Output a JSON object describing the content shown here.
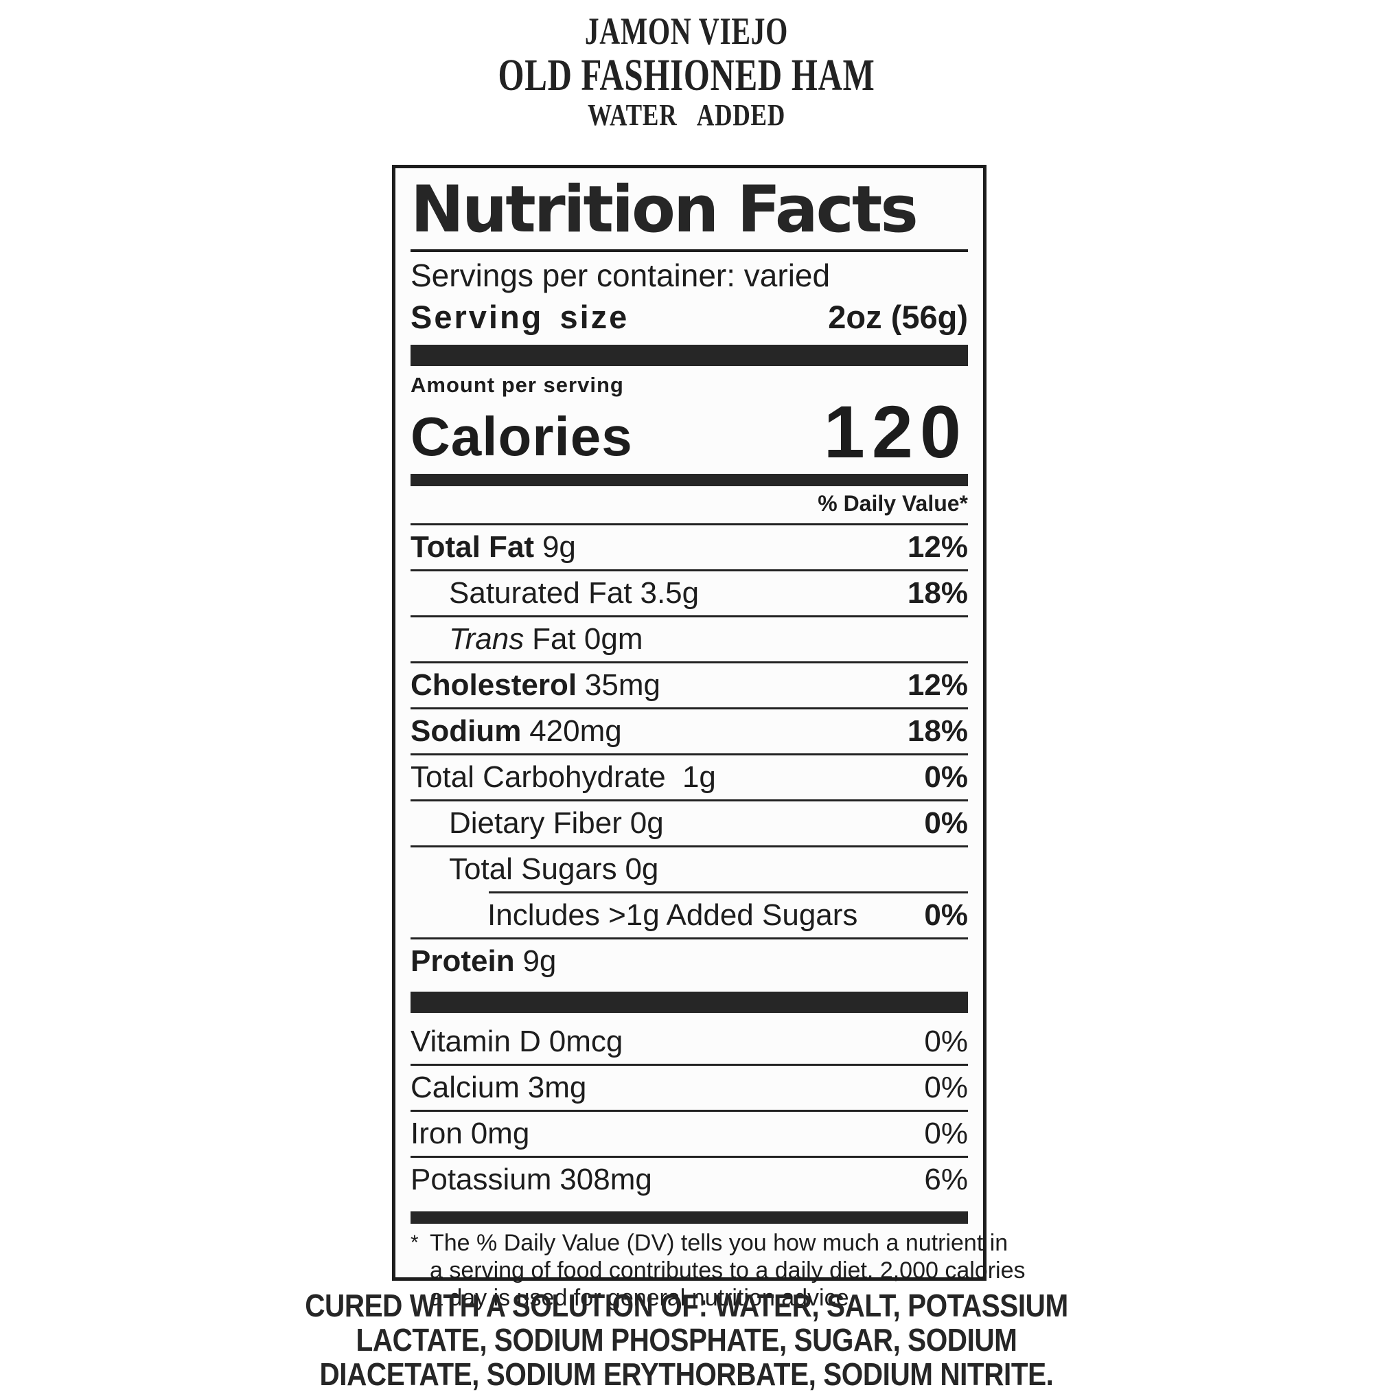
{
  "product": {
    "title_line1": "JAMON VIEJO",
    "title_line2": "OLD FASHIONED HAM",
    "title_line3": "WATER  ADDED"
  },
  "label": {
    "title": "Nutrition Facts",
    "servings_per_container": "Servings per container: varied",
    "serving_size_label": "Serving size",
    "serving_size_value": "2oz (56g)",
    "amount_per_serving": "Amount per serving",
    "calories_label": "Calories",
    "calories_value": "120",
    "daily_value_header": "% Daily Value*",
    "nutrients": [
      {
        "name": "Total Fat",
        "amount": "9g",
        "dv": "12%"
      },
      {
        "name": "Saturated Fat",
        "amount": "3.5g",
        "dv": "18%"
      },
      {
        "name": "Trans",
        "amount": "Fat 0gm",
        "dv": ""
      },
      {
        "name": "Cholesterol",
        "amount": "35mg",
        "dv": "12%"
      },
      {
        "name": "Sodium",
        "amount": "420mg",
        "dv": "18%"
      },
      {
        "name": "Total Carbohydrate",
        "amount": "1g",
        "dv": "0%"
      },
      {
        "name": "Dietary Fiber",
        "amount": "0g",
        "dv": "0%"
      },
      {
        "name": "Total Sugars",
        "amount": "0g",
        "dv": ""
      },
      {
        "name": "Includes >1g Added Sugars",
        "amount": "",
        "dv": "0%"
      },
      {
        "name": "Protein",
        "amount": "9g",
        "dv": ""
      }
    ],
    "vitamins": [
      {
        "name": "Vitamin D",
        "amount": "0mcg",
        "dv": "0%"
      },
      {
        "name": "Calcium",
        "amount": "3mg",
        "dv": "0%"
      },
      {
        "name": "Iron",
        "amount": "0mg",
        "dv": "0%"
      },
      {
        "name": "Potassium",
        "amount": "308mg",
        "dv": "6%"
      }
    ],
    "footnote_star": "*",
    "footnote_lines": [
      "The % Daily Value (DV) tells you how much a nutrient in",
      "a serving of food contributes to a daily diet. 2,000 calories",
      "a day is used for general nutrition advice."
    ]
  },
  "cured_statement_lines": [
    "CURED WITH A SOLUTION OF: WATER, SALT, POTASSIUM",
    "LACTATE, SODIUM PHOSPHATE, SUGAR, SODIUM",
    "DIACETATE, SODIUM ERYTHORBATE, SODIUM NITRITE."
  ],
  "colors": {
    "ink": "#1d1d1d",
    "background": "#ffffff",
    "label_background": "#fcfcfc"
  }
}
